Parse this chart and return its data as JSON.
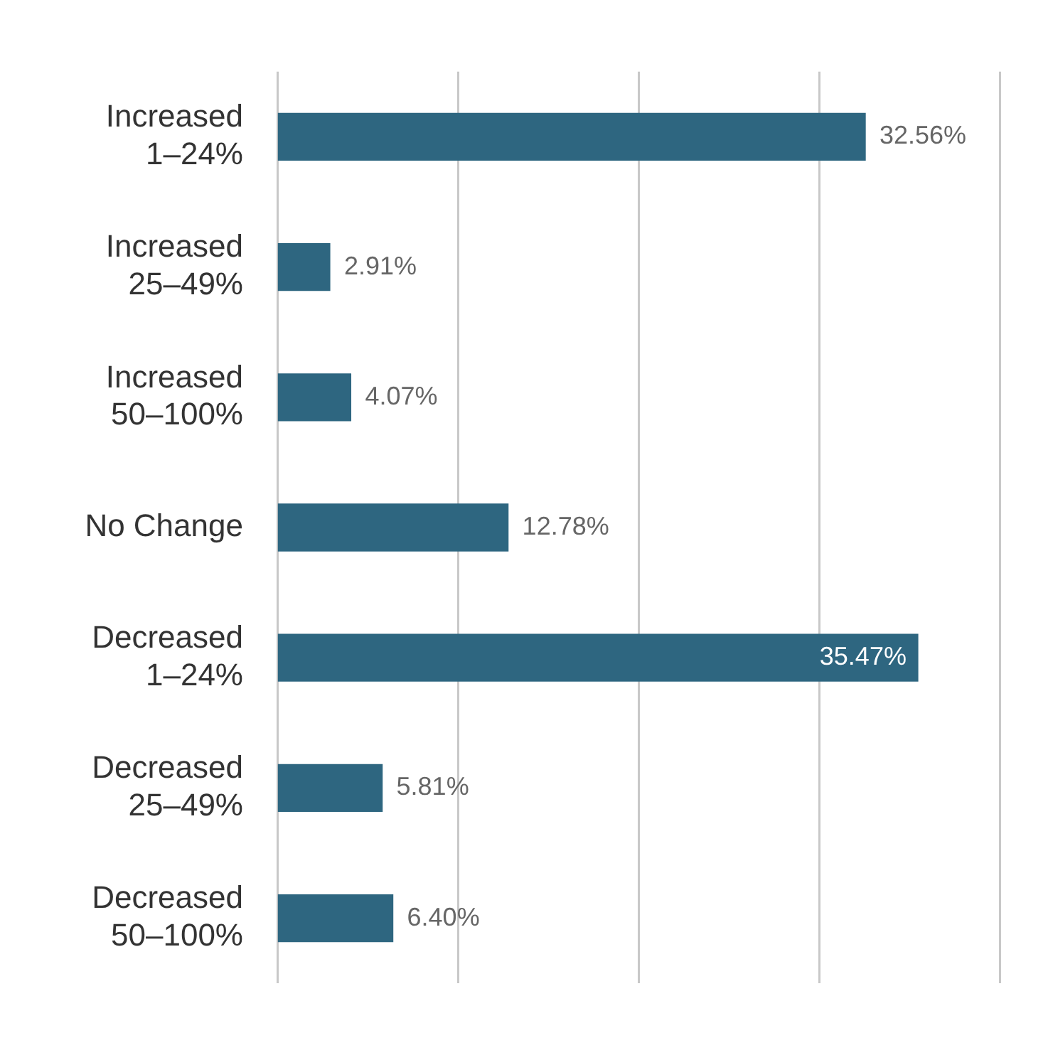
{
  "chart_data": {
    "type": "bar",
    "orientation": "horizontal",
    "categories": [
      "Increased 1–24%",
      "Increased 25–49%",
      "Increased 50–100%",
      "No Change",
      "Decreased 1–24%",
      "Decreased 25–49%",
      "Decreased 50–100%"
    ],
    "values": [
      32.56,
      2.91,
      4.07,
      12.78,
      35.47,
      5.81,
      6.4
    ],
    "value_labels": [
      "32.56%",
      "2.91%",
      "4.07%",
      "12.78%",
      "35.47%",
      "5.81%",
      "6.40%"
    ],
    "color": "#2e6680",
    "xlim": [
      0,
      40
    ],
    "xticks": [
      {
        "value": 0,
        "label": null
      },
      {
        "value": 10,
        "label": null
      },
      {
        "value": 20,
        "label": null
      },
      {
        "value": 30,
        "label": null
      },
      {
        "value": 40,
        "label": null
      }
    ],
    "grid": "x",
    "legend": false
  }
}
